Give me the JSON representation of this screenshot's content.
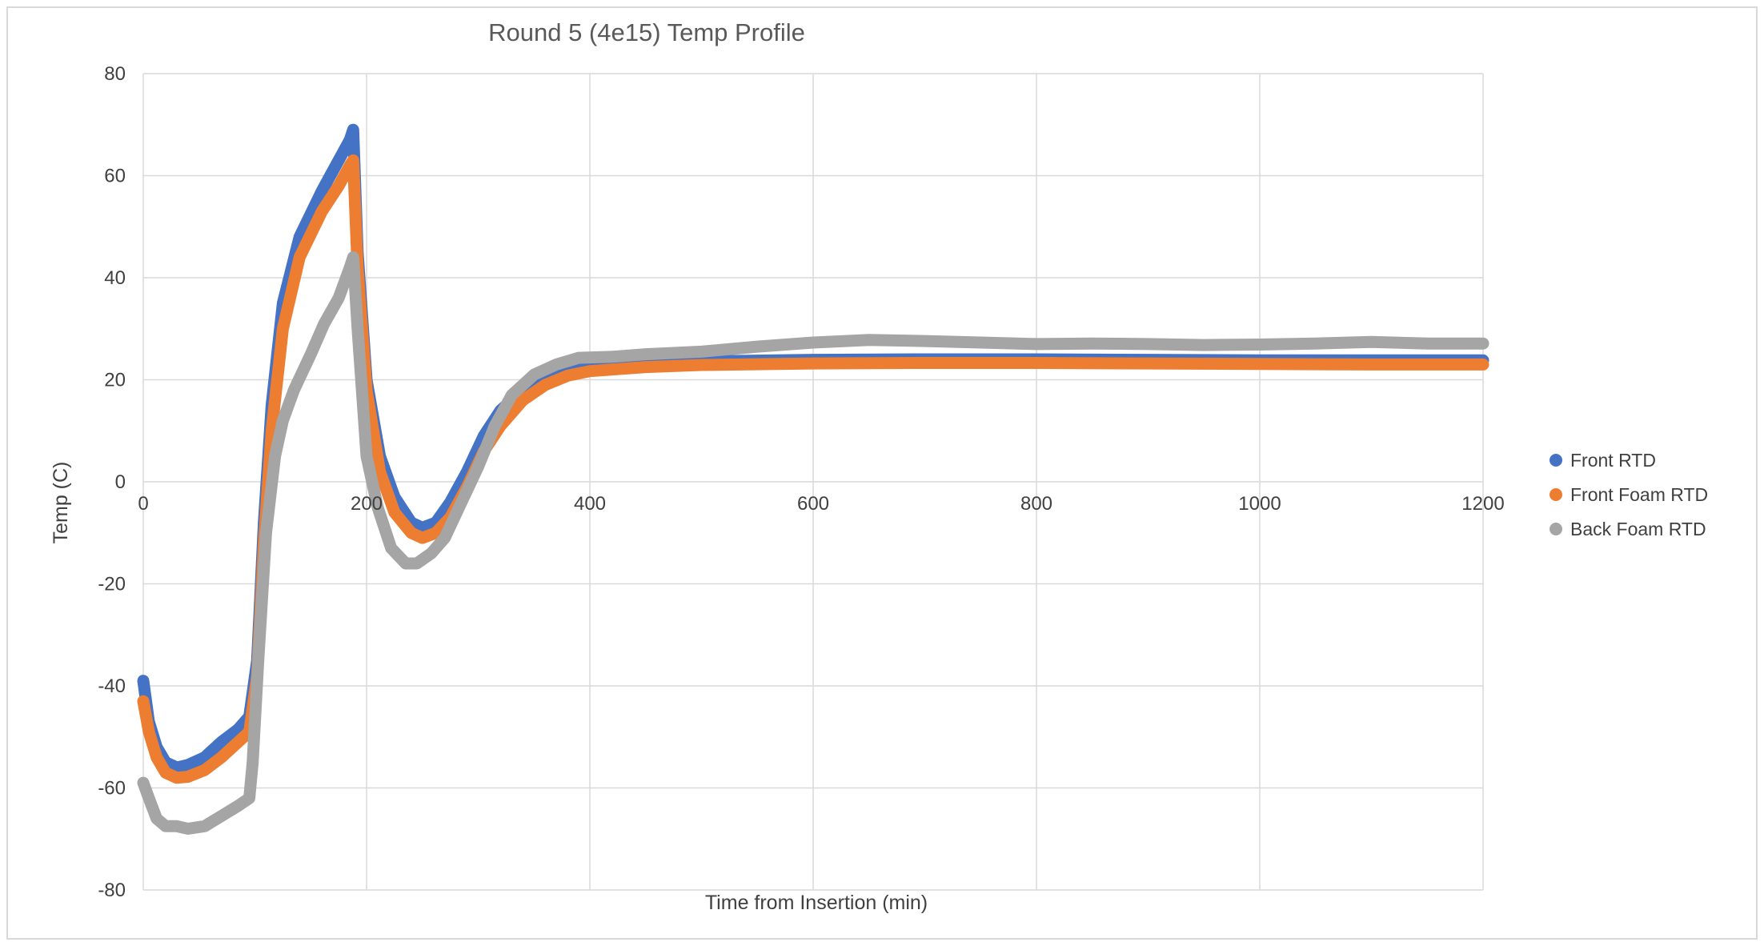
{
  "chart_data": {
    "type": "line",
    "title": "Round 5 (4e15) Temp Profile",
    "xlabel": "Time from Insertion (min)",
    "ylabel": "Temp (C)",
    "xlim": [
      0,
      1200
    ],
    "ylim": [
      -80,
      80
    ],
    "x_ticks": [
      "0",
      "200",
      "400",
      "600",
      "800",
      "1000",
      "1200"
    ],
    "y_ticks": [
      "80",
      "60",
      "40",
      "20",
      "0",
      "-20",
      "-40",
      "-60",
      "-80"
    ],
    "grid": true,
    "legend_position": "right",
    "series": [
      {
        "name": "Front RTD",
        "color": "#4472C4",
        "points": [
          [
            0,
            -39
          ],
          [
            5,
            -47
          ],
          [
            12,
            -52
          ],
          [
            20,
            -55
          ],
          [
            30,
            -56
          ],
          [
            40,
            -55.5
          ],
          [
            55,
            -54
          ],
          [
            70,
            -51
          ],
          [
            85,
            -48.5
          ],
          [
            95,
            -46
          ],
          [
            102,
            -35
          ],
          [
            108,
            -8
          ],
          [
            115,
            15
          ],
          [
            125,
            35
          ],
          [
            140,
            48
          ],
          [
            160,
            57
          ],
          [
            175,
            63
          ],
          [
            185,
            67
          ],
          [
            188,
            69
          ],
          [
            192,
            45
          ],
          [
            200,
            20
          ],
          [
            212,
            5
          ],
          [
            225,
            -3
          ],
          [
            240,
            -8
          ],
          [
            250,
            -9
          ],
          [
            262,
            -8
          ],
          [
            275,
            -4
          ],
          [
            290,
            2
          ],
          [
            305,
            9
          ],
          [
            320,
            14
          ],
          [
            340,
            18
          ],
          [
            360,
            20.5
          ],
          [
            380,
            22
          ],
          [
            400,
            22.7
          ],
          [
            450,
            23.3
          ],
          [
            500,
            23.6
          ],
          [
            600,
            23.9
          ],
          [
            700,
            24
          ],
          [
            800,
            24
          ],
          [
            900,
            23.9
          ],
          [
            1000,
            23.8
          ],
          [
            1100,
            23.8
          ],
          [
            1200,
            23.8
          ]
        ]
      },
      {
        "name": "Front Foam RTD",
        "color": "#ED7D31",
        "points": [
          [
            0,
            -43
          ],
          [
            5,
            -49
          ],
          [
            12,
            -54
          ],
          [
            20,
            -57
          ],
          [
            30,
            -58
          ],
          [
            40,
            -57.8
          ],
          [
            55,
            -56.5
          ],
          [
            70,
            -54
          ],
          [
            85,
            -51
          ],
          [
            95,
            -49
          ],
          [
            102,
            -38
          ],
          [
            108,
            -12
          ],
          [
            115,
            10
          ],
          [
            125,
            30
          ],
          [
            140,
            44
          ],
          [
            160,
            53
          ],
          [
            175,
            58
          ],
          [
            185,
            62
          ],
          [
            188,
            63
          ],
          [
            192,
            42
          ],
          [
            200,
            18
          ],
          [
            212,
            2
          ],
          [
            225,
            -6
          ],
          [
            240,
            -10
          ],
          [
            250,
            -11
          ],
          [
            262,
            -10
          ],
          [
            275,
            -7
          ],
          [
            290,
            -1
          ],
          [
            305,
            6
          ],
          [
            320,
            11
          ],
          [
            340,
            16
          ],
          [
            360,
            19
          ],
          [
            380,
            20.8
          ],
          [
            400,
            21.7
          ],
          [
            450,
            22.5
          ],
          [
            500,
            22.9
          ],
          [
            600,
            23.2
          ],
          [
            700,
            23.3
          ],
          [
            800,
            23.3
          ],
          [
            900,
            23.2
          ],
          [
            1000,
            23.1
          ],
          [
            1100,
            23
          ],
          [
            1200,
            23
          ]
        ]
      },
      {
        "name": "Back Foam RTD",
        "color": "#A5A5A5",
        "points": [
          [
            0,
            -59
          ],
          [
            5,
            -62
          ],
          [
            12,
            -66
          ],
          [
            20,
            -67.5
          ],
          [
            30,
            -67.5
          ],
          [
            40,
            -68
          ],
          [
            55,
            -67.5
          ],
          [
            70,
            -65.5
          ],
          [
            85,
            -63.5
          ],
          [
            95,
            -62
          ],
          [
            98,
            -55
          ],
          [
            103,
            -35
          ],
          [
            110,
            -10
          ],
          [
            118,
            5
          ],
          [
            125,
            12
          ],
          [
            135,
            18
          ],
          [
            150,
            25
          ],
          [
            162,
            31
          ],
          [
            175,
            36
          ],
          [
            185,
            42
          ],
          [
            188,
            44
          ],
          [
            192,
            30
          ],
          [
            200,
            5
          ],
          [
            210,
            -5
          ],
          [
            222,
            -13
          ],
          [
            235,
            -16
          ],
          [
            245,
            -16
          ],
          [
            258,
            -14
          ],
          [
            270,
            -11
          ],
          [
            285,
            -4
          ],
          [
            300,
            3
          ],
          [
            315,
            11
          ],
          [
            330,
            17
          ],
          [
            350,
            21
          ],
          [
            370,
            23
          ],
          [
            390,
            24.3
          ],
          [
            420,
            24.5
          ],
          [
            450,
            25
          ],
          [
            500,
            25.5
          ],
          [
            550,
            26.5
          ],
          [
            600,
            27.3
          ],
          [
            650,
            27.8
          ],
          [
            700,
            27.6
          ],
          [
            750,
            27.3
          ],
          [
            800,
            27
          ],
          [
            850,
            27.1
          ],
          [
            900,
            27
          ],
          [
            950,
            26.8
          ],
          [
            1000,
            26.9
          ],
          [
            1050,
            27.1
          ],
          [
            1100,
            27.4
          ],
          [
            1150,
            27.1
          ],
          [
            1200,
            27.1
          ]
        ]
      }
    ]
  }
}
